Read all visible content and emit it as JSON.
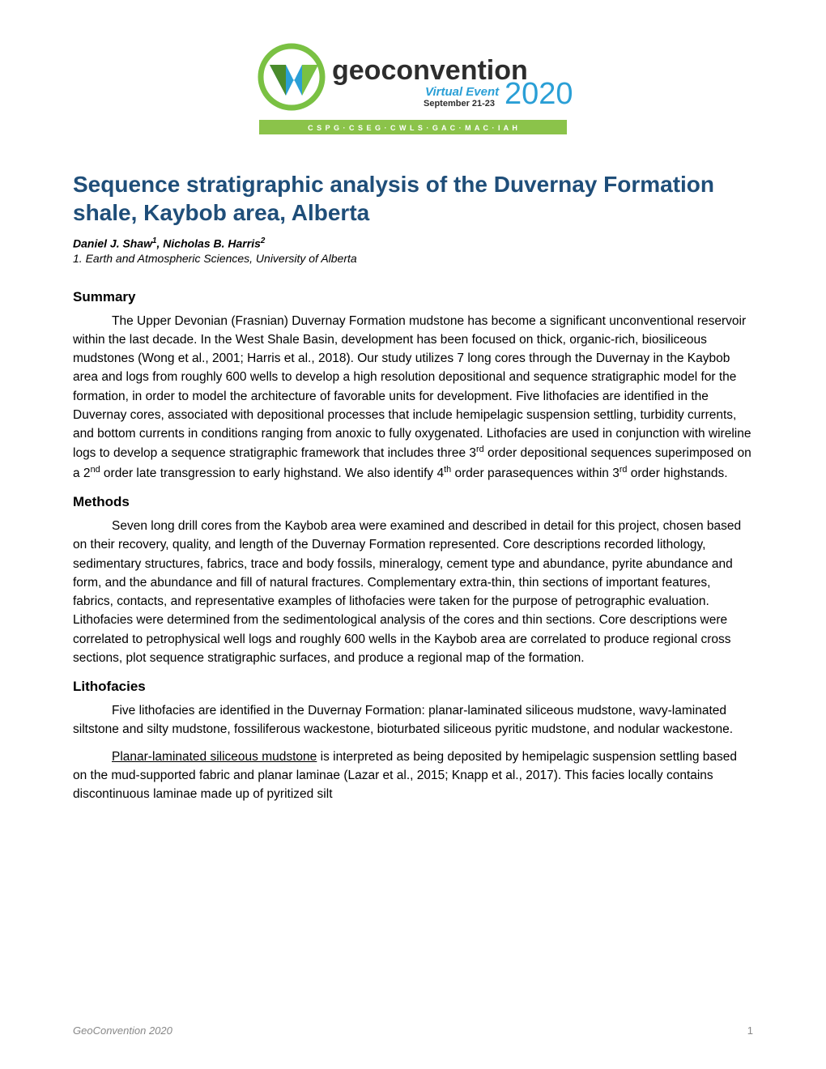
{
  "logo": {
    "main_text": "geoconvention",
    "sub_text": "Virtual Event",
    "dates": "September 21-23",
    "year": "2020",
    "sponsors": "C S P G  ·  C S E G  ·  C W L S  ·  G A C  ·  M A C  ·  I A H",
    "colors": {
      "green": "#7ac143",
      "dark_green": "#4a8b2c",
      "teal": "#2a9fd6",
      "text_dark": "#2d2d2d",
      "bar_green": "#8bc34a"
    }
  },
  "paper": {
    "title": "Sequence stratigraphic analysis of the Duvernay Formation shale, Kaybob area, Alberta",
    "title_color": "#1f4e79",
    "authors_html": "Daniel J. Shaw<sup>1</sup>, Nicholas B. Harris<sup>2</sup>",
    "affiliation": "1. Earth and Atmospheric Sciences, University of Alberta",
    "sections": {
      "summary": {
        "heading": "Summary",
        "body_html": "The Upper Devonian (Frasnian) Duvernay Formation mudstone has become a significant unconventional reservoir within the last decade. In the West Shale Basin, development has been focused on thick, organic-rich, biosiliceous mudstones (Wong et al., 2001; Harris et al., 2018). Our study utilizes 7 long cores through the Duvernay in the Kaybob area and logs from roughly 600 wells to develop a high resolution depositional and sequence stratigraphic model for the formation, in order to model the architecture of favorable units for development. Five lithofacies are identified in the Duvernay cores, associated with depositional processes that include hemipelagic suspension settling, turbidity currents, and bottom currents in conditions ranging from anoxic to fully oxygenated. Lithofacies are used in conjunction with wireline logs to develop a sequence stratigraphic framework that includes three 3<sup>rd</sup> order depositional sequences superimposed on a 2<sup>nd</sup> order late transgression to early highstand. We also identify 4<sup>th</sup> order parasequences within 3<sup>rd</sup> order highstands."
      },
      "methods": {
        "heading": "Methods",
        "body": "Seven long drill cores from the Kaybob area were examined and described in detail for this project, chosen based on their recovery, quality, and length of the Duvernay Formation represented. Core descriptions recorded lithology, sedimentary structures, fabrics, trace and body fossils, mineralogy, cement type and abundance, pyrite abundance and form, and the abundance and fill of natural fractures. Complementary extra-thin, thin sections of important features, fabrics, contacts, and representative examples of lithofacies were taken for the purpose of petrographic evaluation. Lithofacies were determined from the sedimentological analysis of the cores and thin sections. Core descriptions were correlated to petrophysical well logs and roughly 600 wells in the Kaybob area are correlated to produce regional cross sections, plot sequence stratigraphic surfaces, and produce a regional map of the formation."
      },
      "lithofacies": {
        "heading": "Lithofacies",
        "para1": "Five lithofacies are identified in the Duvernay Formation: planar-laminated siliceous mudstone, wavy-laminated siltstone and silty mudstone, fossiliferous wackestone, bioturbated siliceous pyritic mudstone, and nodular wackestone.",
        "para2_html": "<span class=\"underline\">Planar-laminated siliceous mudstone</span> is interpreted as being deposited by hemipelagic suspension settling based on the mud-supported fabric and planar laminae (Lazar et al., 2015; Knapp et al., 2017). This facies locally contains discontinuous laminae made up of pyritized silt"
      }
    }
  },
  "footer": {
    "left": "GeoConvention 2020",
    "page": "1"
  }
}
